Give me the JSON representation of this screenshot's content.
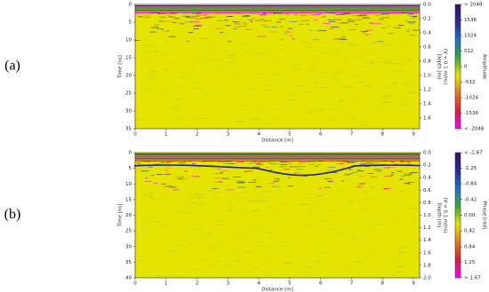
{
  "chart_data": [
    {
      "type": "heatmap",
      "panel_label": "(a)",
      "xlabel": "Distance [m]",
      "ylabel": "Time [ns]",
      "y2label": "Depth [m]",
      "y2label_note": "(V = 0.1 m/ns)",
      "colorbar_label": "Amplitude",
      "xlim": [
        0,
        9.2
      ],
      "xticks": [
        0,
        1,
        2,
        3,
        4,
        5,
        6,
        7,
        8,
        9
      ],
      "ylim": [
        0,
        35
      ],
      "y_inverted": true,
      "yticks": [
        0,
        5,
        10,
        15,
        20,
        25,
        30,
        35
      ],
      "y2lim": [
        0,
        1.75
      ],
      "y2ticks": [
        {
          "value": 0,
          "label": "0.0"
        },
        {
          "value": 0.2,
          "label": "0.2"
        },
        {
          "value": 0.4,
          "label": "0.4"
        },
        {
          "value": 0.6,
          "label": "0.6"
        },
        {
          "value": 0.8,
          "label": "0.8"
        },
        {
          "value": 1.0,
          "label": "1.0"
        },
        {
          "value": 1.2,
          "label": "1.2"
        },
        {
          "value": 1.4,
          "label": "1.4"
        },
        {
          "value": 1.6,
          "label": "1.6"
        }
      ],
      "clim": [
        -2048,
        2048
      ],
      "cticks": [
        {
          "value": 2048,
          "label": "> 2048"
        },
        1536,
        1024,
        512,
        0,
        -512,
        -1024,
        -1536,
        {
          "value": -2048,
          "label": "< -2048"
        }
      ],
      "colormap": [
        "#ff00ff",
        "#d0203c",
        "#e07a20",
        "#e6e600",
        "#3aa83a",
        "#2070c8",
        "#2a2a90",
        "#3a1060"
      ]
    },
    {
      "type": "heatmap",
      "panel_label": "(b)",
      "xlabel": "Distance [m]",
      "ylabel": "Time [ns]",
      "y2label": "Depth [m]",
      "y2label_note": "(V = 0.1 m/ns)",
      "colorbar_label": "Phase [rad]",
      "xlim": [
        0,
        9.2
      ],
      "xticks": [
        0,
        1,
        2,
        3,
        4,
        5,
        6,
        7,
        8,
        9
      ],
      "ylim": [
        0,
        40
      ],
      "y_inverted": true,
      "yticks": [
        0,
        5,
        10,
        15,
        20,
        25,
        30,
        35,
        40
      ],
      "y2lim": [
        0,
        2.0
      ],
      "y2ticks": [
        {
          "value": 0,
          "label": "0.0"
        },
        {
          "value": 0.2,
          "label": "0.2"
        },
        {
          "value": 0.4,
          "label": "0.4"
        },
        {
          "value": 0.6,
          "label": "0.6"
        },
        {
          "value": 0.8,
          "label": "0.8"
        },
        {
          "value": 1.0,
          "label": "1.0"
        },
        {
          "value": 1.2,
          "label": "1.2"
        },
        {
          "value": 1.4,
          "label": "1.4"
        },
        {
          "value": 1.6,
          "label": "1.6"
        },
        {
          "value": 1.8,
          "label": "1.8"
        },
        {
          "value": 2.0,
          "label": "2.0"
        }
      ],
      "clim": [
        1.67,
        -1.67
      ],
      "cticks": [
        {
          "value": -1.67,
          "label": "< -1.67"
        },
        -1.25,
        -0.84,
        -0.42,
        {
          "value": 0,
          "label": "0.00"
        },
        0.42,
        0.84,
        1.25,
        {
          "value": 1.67,
          "label": "> 1.67"
        }
      ],
      "colormap": [
        "#ff00ff",
        "#d0203c",
        "#e07a20",
        "#e6e600",
        "#3aa83a",
        "#2070c8",
        "#2a2a90",
        "#3a1060"
      ]
    }
  ]
}
